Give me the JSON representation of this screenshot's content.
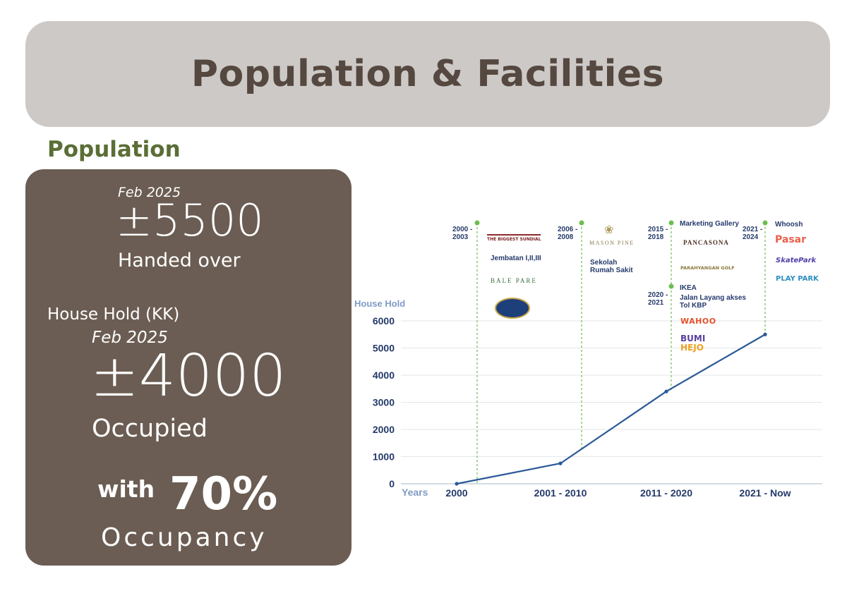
{
  "header": {
    "title": "Population & Facilities"
  },
  "section": {
    "title": "Population"
  },
  "stats": {
    "handed_over": {
      "date": "Feb 2025",
      "value": "±5500",
      "label": "Handed over"
    },
    "household": {
      "heading": "House Hold (KK)",
      "date": "Feb 2025",
      "value": "±4000",
      "label": "Occupied"
    },
    "occupancy": {
      "prefix": "with",
      "value": "70%",
      "label": "Occupancy"
    }
  },
  "colors": {
    "title_bar": "#cdc9c6",
    "title_text": "#554840",
    "section_title": "#5a6e36",
    "card": "#6b5d53",
    "line": "#2b5996",
    "milestone": "#6cbf4f",
    "axis_text": "#253a6b",
    "axis_label": "#7f9cc4"
  },
  "chart_data": {
    "type": "line",
    "ylabel": "House Hold",
    "xlabel": "Years",
    "ylim": [
      0,
      6000
    ],
    "yticks": [
      0,
      1000,
      2000,
      3000,
      4000,
      5000,
      6000
    ],
    "categories": [
      "2000",
      "2001 - 2010",
      "2011 - 2020",
      "2021 - Now"
    ],
    "grid": true,
    "series": [
      {
        "points": [
          {
            "x": "2000",
            "y": 0
          },
          {
            "x": "2001 - 2010",
            "y": 750
          },
          {
            "x": "2011 - 2020",
            "y": 3400
          },
          {
            "x": "2021 - Now",
            "y": 5500
          }
        ]
      }
    ],
    "milestones": [
      {
        "period": "2000 - 2003",
        "items": [
          "Jembatan I,II,III"
        ],
        "logos": [
          "The Biggest Sundial",
          "Bale Pare",
          "Bale Seni"
        ]
      },
      {
        "period": "2006 - 2008",
        "items": [
          "Sekolah",
          "Rumah Sakit"
        ],
        "logos": [
          "Mason Pine Hotel"
        ]
      },
      {
        "period": "2015 - 2018",
        "items": [
          "Marketing Gallery"
        ],
        "logos": [
          "Bumi Pancasona",
          "Parahyangan Golf"
        ]
      },
      {
        "period": "2020 - 2021",
        "items": [
          "IKEA",
          "Jalan Layang akses Tol KBP"
        ],
        "logos": [
          "Wahoo",
          "Bumi Hejo"
        ]
      },
      {
        "period": "2021 - 2024",
        "items": [
          "Whoosh"
        ],
        "logos": [
          "Pasar",
          "Bumi Skate Park",
          "Bumi Play Park"
        ]
      }
    ]
  }
}
